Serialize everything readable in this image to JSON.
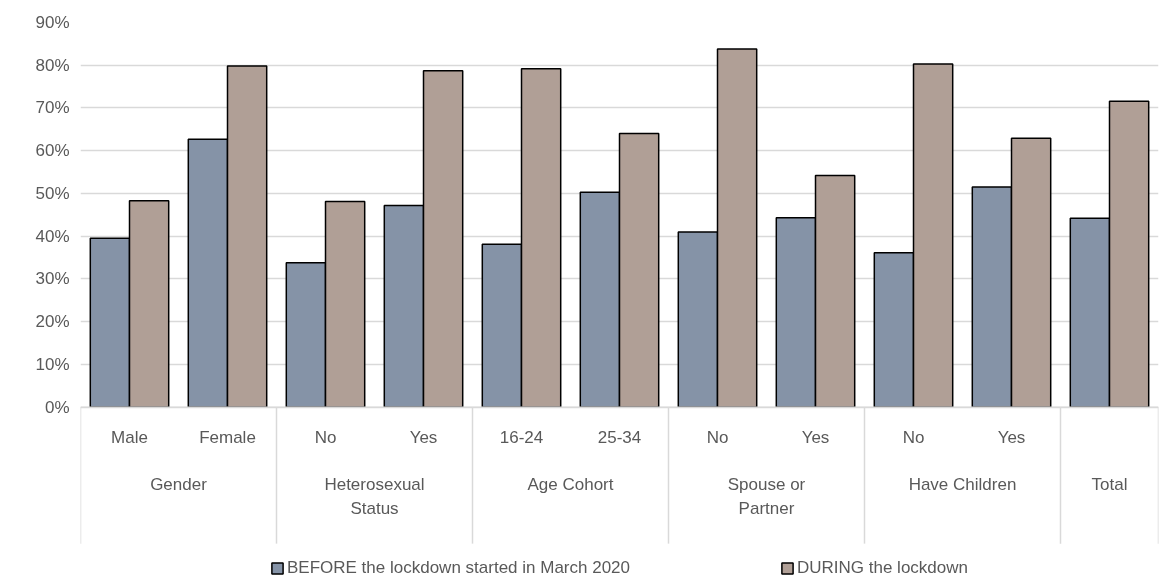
{
  "chart_data": {
    "type": "bar",
    "categories": [
      [
        "Gender",
        "Male"
      ],
      [
        null,
        "Female"
      ],
      [
        "Heterosexual Status",
        "No"
      ],
      [
        null,
        "Yes"
      ],
      [
        "Age Cohort",
        "16-24"
      ],
      [
        null,
        "25-34"
      ],
      [
        "Spouse or Partner",
        "No"
      ],
      [
        null,
        "Yes"
      ],
      [
        "Have Children",
        "No"
      ],
      [
        null,
        "Yes"
      ],
      [
        "Total",
        null
      ]
    ],
    "series": [
      {
        "name": "BEFORE the lockdown started in March 2020",
        "color": "#8593a7",
        "values": [
          39.5,
          62.7,
          33.8,
          47.2,
          38.1,
          50.3,
          41.0,
          44.3,
          36.1,
          51.5,
          44.2
        ]
      },
      {
        "name": "DURING the lockdown",
        "color": "#b09f96",
        "values": [
          48.3,
          79.8,
          48.1,
          78.7,
          79.2,
          64.0,
          83.8,
          54.2,
          80.3,
          62.9,
          71.6
        ]
      }
    ],
    "ylim": [
      0,
      90
    ],
    "yticks": [
      {
        "value": 0,
        "label": "0%"
      },
      {
        "value": 10,
        "label": "10%"
      },
      {
        "value": 20,
        "label": "20%"
      },
      {
        "value": 30,
        "label": "30%"
      },
      {
        "value": 40,
        "label": "40%"
      },
      {
        "value": 50,
        "label": "50%"
      },
      {
        "value": 60,
        "label": "60%"
      },
      {
        "value": 70,
        "label": "70%"
      },
      {
        "value": 80,
        "label": "80%"
      },
      {
        "value": 90,
        "label": "90%"
      }
    ],
    "grid": "y",
    "legend": "bottom"
  }
}
